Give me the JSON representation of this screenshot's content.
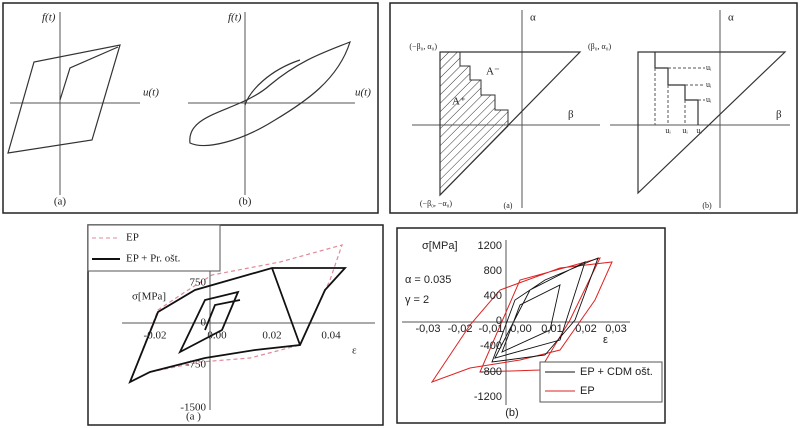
{
  "panel_top_left": {
    "sketch_a": {
      "y_label": "f(t)",
      "x_label": "u(t)",
      "caption": "(a)"
    },
    "sketch_b": {
      "y_label": "f(t)",
      "x_label": "u(t)",
      "caption": "(b)"
    }
  },
  "panel_top_right": {
    "triangle_a": {
      "alpha": "α",
      "beta": "β",
      "corner_left": "(−β₀, α₀)",
      "corner_right": "(β₀, α₀)",
      "area_minus": "A⁻",
      "area_plus": "A⁺",
      "corner_bottom": "(−β₀, −α₀)",
      "caption": "(a)"
    },
    "triangle_b": {
      "alpha": "α",
      "beta": "β",
      "u_right": [
        "uᵢ",
        "uᵢ",
        "uᵢ"
      ],
      "u_bottom": [
        "uᵢ",
        "uᵢ",
        "uᵢ"
      ],
      "caption": "(b)"
    }
  },
  "panel_bottom_left": {
    "legend": [
      "EP",
      "EP + Pr. ošt."
    ],
    "y_label": "σ[MPa]",
    "x_label": "ε",
    "y_ticks": [
      "750",
      "0",
      "-750",
      "-1500"
    ],
    "x_ticks": [
      "-0.02",
      "0.00",
      "0.02",
      "0.04"
    ],
    "caption": "(a )"
  },
  "panel_bottom_right": {
    "y_label": "σ[MPa]",
    "y_ticks": [
      "1200",
      "800",
      "400",
      "0",
      "-400",
      "-800",
      "-1200"
    ],
    "x_ticks": [
      "-0,03",
      "-0,02",
      "-0,01",
      "0,00",
      "0,01",
      "0,02",
      "0,03"
    ],
    "x_label": "ε",
    "params": [
      "α = 0.035",
      "γ = 2"
    ],
    "legend": [
      "EP + CDM ošt.",
      "EP"
    ],
    "caption": "(b)"
  }
}
